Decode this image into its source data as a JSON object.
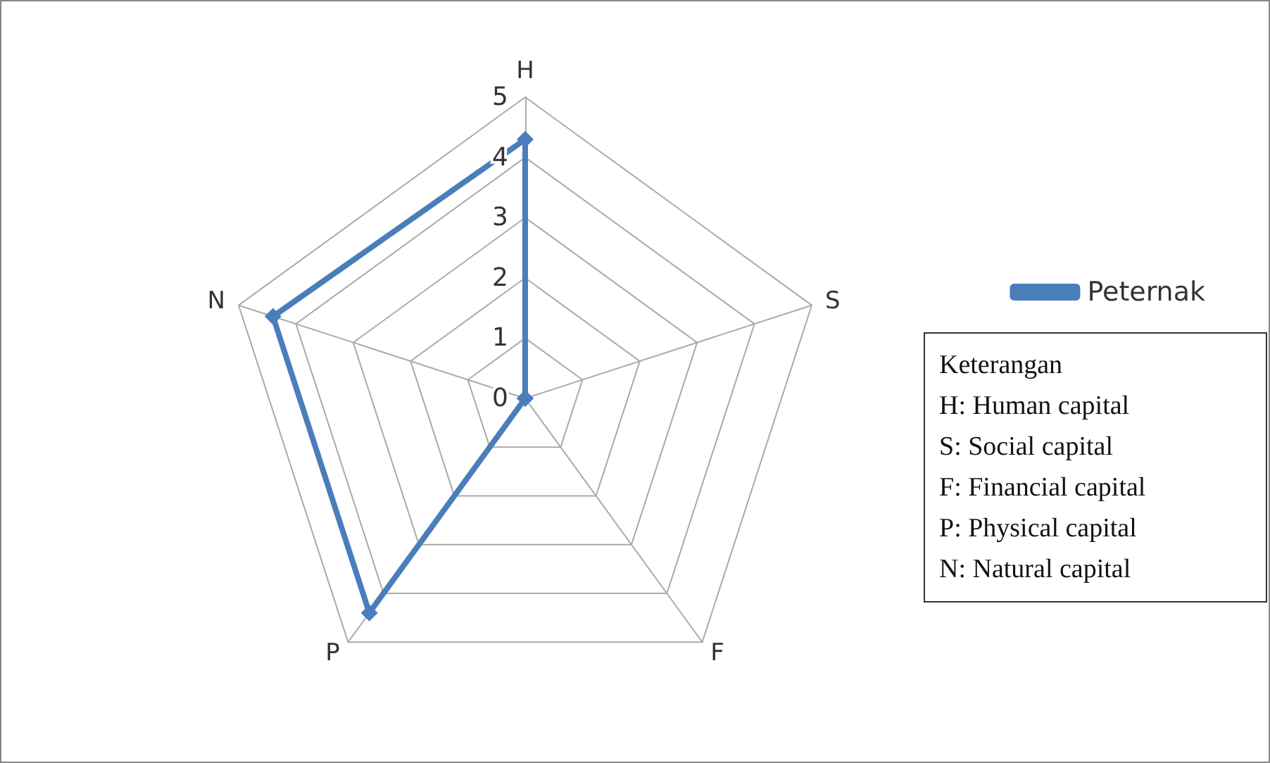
{
  "chart_data": {
    "type": "radar",
    "categories": [
      "H",
      "S",
      "F",
      "P",
      "N"
    ],
    "series": [
      {
        "name": "Peternak",
        "color": "#4a7ebb",
        "values": [
          4.3,
          0,
          0,
          4.4,
          4.4
        ]
      }
    ],
    "ylim": [
      0,
      5
    ],
    "yticks": [
      0,
      1,
      2,
      3,
      4,
      5
    ],
    "grid": true,
    "legend": "right",
    "marker": "diamond",
    "line_style": "solid",
    "annotations": [
      "Keterangan",
      "H: Human capital",
      "S: Social capital",
      "F: Financial capital",
      "P: Physical capital",
      "N: Natural capital"
    ]
  }
}
